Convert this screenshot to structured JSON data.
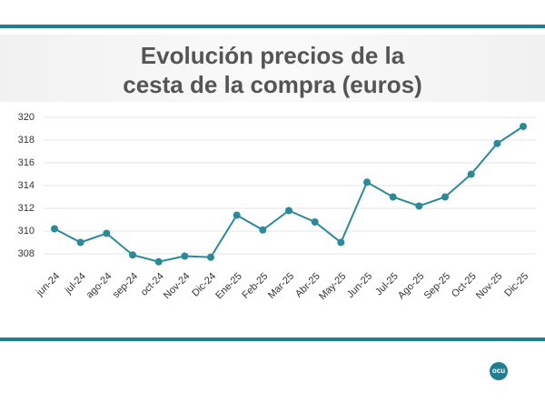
{
  "chart_data": {
    "type": "line",
    "title": [
      "Evolución precios de la",
      "cesta de la compra (euros)"
    ],
    "categories": [
      "jun-24",
      "jul-24",
      "ago-24",
      "sep-24",
      "oct-24",
      "Nov-24",
      "Dic-24",
      "Ene-25",
      "Feb-25",
      "Mar-25",
      "Abr-25",
      "May-25",
      "Jun-25",
      "Jul-25",
      "Ago-25",
      "Sep-25",
      "Oct-25",
      "Nov-25",
      "Dic-25"
    ],
    "values": [
      310.2,
      309.0,
      309.8,
      307.9,
      307.3,
      307.8,
      307.7,
      311.4,
      310.1,
      311.8,
      310.8,
      309.0,
      314.3,
      313.0,
      312.2,
      313.0,
      315.0,
      317.7,
      319.2
    ],
    "color": "#2b8a99",
    "ylim": [
      307,
      321
    ],
    "yticks": [
      308,
      310,
      312,
      314,
      316,
      318,
      320
    ],
    "grid": true,
    "logo": "ocu"
  }
}
